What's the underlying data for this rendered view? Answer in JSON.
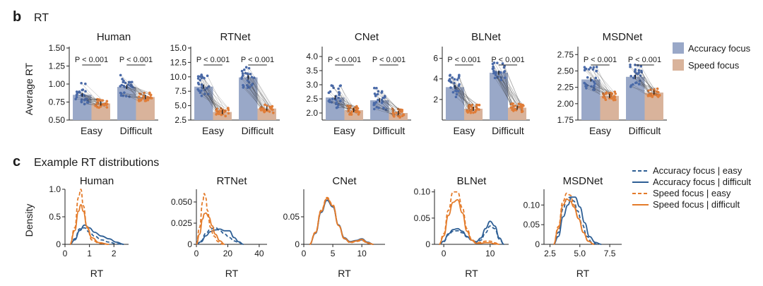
{
  "panel_b": {
    "letter": "b",
    "title": "RT",
    "ylabel": "Average RT"
  },
  "panel_c": {
    "letter": "c",
    "title": "Example RT distributions",
    "ylabel": "Density",
    "xlabel": "RT"
  },
  "colors": {
    "accuracy": "#99a8c8",
    "speed": "#d9b39b",
    "acc_line": "#2e5f95",
    "spd_line": "#e47b2a",
    "dot_acc": "#4a6aa8",
    "dot_spd": "#e07d38",
    "pair": "#3a3a3a"
  },
  "legend_b": [
    {
      "label": "Accuracy focus",
      "color": "#99a8c8"
    },
    {
      "label": "Speed focus",
      "color": "#d9b39b"
    }
  ],
  "legend_c": [
    {
      "label": "Accuracy focus | easy",
      "color": "#2e5f95",
      "dash": true
    },
    {
      "label": "Accuracy focus | difficult",
      "color": "#2e5f95",
      "dash": false
    },
    {
      "label": "Speed focus | easy",
      "color": "#e47b2a",
      "dash": true
    },
    {
      "label": "Speed focus | difficult",
      "color": "#e47b2a",
      "dash": false
    }
  ],
  "chart_data": [
    {
      "panel": "b",
      "title": "Human",
      "type": "bar",
      "categories": [
        "Easy",
        "Difficult"
      ],
      "series": [
        {
          "name": "Accuracy focus",
          "values": [
            0.85,
            0.96
          ]
        },
        {
          "name": "Speed focus",
          "values": [
            0.73,
            0.82
          ]
        }
      ],
      "ylim": [
        0.5,
        1.5
      ],
      "yticks": [
        "0.50",
        "0.75",
        "1.00",
        "1.25",
        "1.50"
      ],
      "ytick_values": [
        0.5,
        0.75,
        1.0,
        1.25,
        1.5
      ],
      "annotations": [
        "P < 0.001",
        "P < 0.001"
      ]
    },
    {
      "panel": "b",
      "title": "RTNet",
      "type": "bar",
      "categories": [
        "Easy",
        "Difficult"
      ],
      "series": [
        {
          "name": "Accuracy focus",
          "values": [
            8.3,
            9.9
          ]
        },
        {
          "name": "Speed focus",
          "values": [
            3.9,
            4.5
          ]
        }
      ],
      "ylim": [
        2.5,
        15.0
      ],
      "yticks": [
        "2.5",
        "5.0",
        "7.5",
        "10.0",
        "12.5",
        "15.0"
      ],
      "ytick_values": [
        2.5,
        5,
        7.5,
        10,
        12.5,
        15
      ],
      "annotations": [
        "P < 0.001",
        "P < 0.001"
      ]
    },
    {
      "panel": "b",
      "title": "CNet",
      "type": "bar",
      "categories": [
        "Easy",
        "Difficult"
      ],
      "series": [
        {
          "name": "Accuracy focus",
          "values": [
            2.55,
            2.45
          ]
        },
        {
          "name": "Speed focus",
          "values": [
            2.1,
            2.0
          ]
        }
      ],
      "ylim": [
        1.75,
        4.3
      ],
      "yticks": [
        "2.0",
        "2.5",
        "3.0",
        "3.5",
        "4.0"
      ],
      "ytick_values": [
        2,
        2.5,
        3,
        3.5,
        4
      ],
      "annotations": [
        "P < 0.001",
        "P < 0.001"
      ]
    },
    {
      "panel": "b",
      "title": "BLNet",
      "type": "bar",
      "categories": [
        "Easy",
        "Difficult"
      ],
      "series": [
        {
          "name": "Accuracy focus",
          "values": [
            3.2,
            4.6
          ]
        },
        {
          "name": "Speed focus",
          "values": [
            1.1,
            1.2
          ]
        }
      ],
      "ylim": [
        0,
        7
      ],
      "yticks": [
        "2",
        "4",
        "6"
      ],
      "ytick_values": [
        2,
        4,
        6
      ],
      "annotations": [
        "P < 0.001",
        "P < 0.001"
      ]
    },
    {
      "panel": "b",
      "title": "MSDNet",
      "type": "bar",
      "categories": [
        "Easy",
        "Difficult"
      ],
      "series": [
        {
          "name": "Accuracy focus",
          "values": [
            2.37,
            2.41
          ]
        },
        {
          "name": "Speed focus",
          "values": [
            2.12,
            2.17
          ]
        }
      ],
      "ylim": [
        1.75,
        2.85
      ],
      "yticks": [
        "1.75",
        "2.00",
        "2.25",
        "2.50",
        "2.75"
      ],
      "ytick_values": [
        1.75,
        2.0,
        2.25,
        2.5,
        2.75
      ],
      "annotations": [
        "P < 0.001",
        "P < 0.001"
      ]
    },
    {
      "panel": "c",
      "title": "Human",
      "type": "line",
      "xlim": [
        0,
        2.6
      ],
      "ylim": [
        0,
        1.0
      ],
      "xticks": [
        "0",
        "1",
        "2"
      ],
      "xtick_values": [
        0,
        1,
        2
      ],
      "yticks": [
        "0",
        "0.5",
        "1.0"
      ],
      "ytick_values": [
        0,
        0.5,
        1.0
      ],
      "series": [
        {
          "name": "Accuracy focus | easy",
          "x": [
            0.2,
            0.4,
            0.6,
            0.8,
            1.0,
            1.2,
            1.5,
            1.8,
            2.1,
            2.4
          ],
          "y": [
            0,
            0.1,
            0.28,
            0.3,
            0.22,
            0.15,
            0.08,
            0.04,
            0.01,
            0
          ]
        },
        {
          "name": "Accuracy focus | difficult",
          "x": [
            0.2,
            0.4,
            0.6,
            0.8,
            1.0,
            1.2,
            1.5,
            1.8,
            2.1,
            2.4
          ],
          "y": [
            0,
            0.08,
            0.25,
            0.35,
            0.3,
            0.22,
            0.15,
            0.1,
            0.04,
            0
          ]
        },
        {
          "name": "Speed focus | easy",
          "x": [
            0.2,
            0.4,
            0.55,
            0.65,
            0.75,
            0.9,
            1.1,
            1.4,
            1.8
          ],
          "y": [
            0,
            0.3,
            0.85,
            1.0,
            0.7,
            0.3,
            0.08,
            0.02,
            0
          ]
        },
        {
          "name": "Speed focus | difficult",
          "x": [
            0.2,
            0.4,
            0.55,
            0.65,
            0.75,
            0.9,
            1.1,
            1.4,
            1.8
          ],
          "y": [
            0,
            0.25,
            0.6,
            0.72,
            0.6,
            0.32,
            0.12,
            0.03,
            0
          ]
        }
      ]
    },
    {
      "panel": "c",
      "title": "RTNet",
      "type": "line",
      "xlim": [
        0,
        45
      ],
      "ylim": [
        0,
        0.065
      ],
      "xticks": [
        "0",
        "20",
        "40"
      ],
      "xtick_values": [
        0,
        20,
        40
      ],
      "yticks": [
        "0",
        "0.025",
        "0.050"
      ],
      "ytick_values": [
        0,
        0.025,
        0.05
      ],
      "series": [
        {
          "name": "Accuracy focus | easy",
          "x": [
            0,
            3,
            6,
            9,
            12,
            15,
            18,
            21,
            24,
            27,
            30
          ],
          "y": [
            0,
            0.004,
            0.013,
            0.018,
            0.02,
            0.016,
            0.012,
            0.008,
            0.004,
            0.002,
            0
          ]
        },
        {
          "name": "Accuracy focus | difficult",
          "x": [
            0,
            3,
            6,
            9,
            12,
            15,
            18,
            21,
            24,
            27,
            30
          ],
          "y": [
            0,
            0.003,
            0.01,
            0.015,
            0.017,
            0.018,
            0.016,
            0.016,
            0.008,
            0.003,
            0
          ]
        },
        {
          "name": "Speed focus | easy",
          "x": [
            0,
            2,
            4,
            5,
            6,
            7,
            9,
            11,
            14,
            17
          ],
          "y": [
            0,
            0.02,
            0.05,
            0.06,
            0.055,
            0.04,
            0.02,
            0.01,
            0.003,
            0
          ]
        },
        {
          "name": "Speed focus | difficult",
          "x": [
            0,
            2,
            4,
            5,
            6,
            8,
            10,
            12,
            15,
            18
          ],
          "y": [
            0,
            0.012,
            0.03,
            0.036,
            0.037,
            0.032,
            0.022,
            0.012,
            0.004,
            0
          ]
        }
      ]
    },
    {
      "panel": "c",
      "title": "CNet",
      "type": "line",
      "xlim": [
        0,
        14
      ],
      "ylim": [
        0,
        0.1
      ],
      "xticks": [
        "0",
        "5",
        "10"
      ],
      "xtick_values": [
        0,
        5,
        10
      ],
      "yticks": [
        "0",
        "0.05"
      ],
      "ytick_values": [
        0,
        0.05
      ],
      "series": [
        {
          "name": "Accuracy focus | easy",
          "x": [
            1,
            2,
            3,
            4,
            5,
            6,
            7,
            8,
            9,
            10,
            11,
            12
          ],
          "y": [
            0,
            0.02,
            0.06,
            0.082,
            0.07,
            0.035,
            0.01,
            0.004,
            0.006,
            0.008,
            0.003,
            0
          ]
        },
        {
          "name": "Accuracy focus | difficult",
          "x": [
            1,
            2,
            3,
            4,
            5,
            6,
            7,
            8,
            9,
            10,
            11,
            12
          ],
          "y": [
            0,
            0.02,
            0.058,
            0.08,
            0.068,
            0.035,
            0.012,
            0.005,
            0.007,
            0.01,
            0.004,
            0
          ]
        },
        {
          "name": "Speed focus | easy",
          "x": [
            1,
            2,
            3,
            4,
            5,
            6,
            7,
            8,
            9,
            10,
            11,
            12
          ],
          "y": [
            0,
            0.022,
            0.062,
            0.085,
            0.072,
            0.034,
            0.01,
            0.003,
            0.005,
            0.007,
            0.002,
            0
          ]
        },
        {
          "name": "Speed focus | difficult",
          "x": [
            1,
            2,
            3,
            4,
            5,
            6,
            7,
            8,
            9,
            10,
            11,
            12
          ],
          "y": [
            0,
            0.021,
            0.06,
            0.083,
            0.07,
            0.034,
            0.011,
            0.004,
            0.006,
            0.009,
            0.003,
            0
          ]
        }
      ]
    },
    {
      "panel": "c",
      "title": "BLNet",
      "type": "line",
      "xlim": [
        -2,
        14
      ],
      "ylim": [
        0,
        0.105
      ],
      "xticks": [
        "0",
        "10"
      ],
      "xtick_values": [
        0,
        10
      ],
      "yticks": [
        "0",
        "0.05",
        "0.10"
      ],
      "ytick_values": [
        0,
        0.05,
        0.1
      ],
      "series": [
        {
          "name": "Accuracy focus | easy",
          "x": [
            -1,
            0,
            1,
            2,
            3,
            4,
            5,
            6,
            7,
            8,
            9,
            10,
            11,
            12,
            13
          ],
          "y": [
            0,
            0.005,
            0.018,
            0.025,
            0.026,
            0.022,
            0.014,
            0.008,
            0.004,
            0.008,
            0.022,
            0.035,
            0.03,
            0.01,
            0
          ]
        },
        {
          "name": "Accuracy focus | difficult",
          "x": [
            -1,
            0,
            1,
            2,
            3,
            4,
            5,
            6,
            7,
            8,
            9,
            10,
            11,
            12,
            13
          ],
          "y": [
            0,
            0.006,
            0.02,
            0.028,
            0.03,
            0.025,
            0.015,
            0.008,
            0.005,
            0.012,
            0.03,
            0.044,
            0.035,
            0.012,
            0
          ]
        },
        {
          "name": "Speed focus | easy",
          "x": [
            -1,
            0,
            1,
            2,
            3,
            4,
            5,
            6,
            7,
            8,
            9,
            10,
            11,
            12
          ],
          "y": [
            0,
            0.02,
            0.065,
            0.1,
            0.1,
            0.07,
            0.03,
            0.01,
            0.003,
            0.004,
            0.006,
            0.006,
            0.003,
            0
          ]
        },
        {
          "name": "Speed focus | difficult",
          "x": [
            -1,
            0,
            1,
            2,
            3,
            4,
            5,
            6,
            7,
            8,
            9,
            10,
            11,
            12
          ],
          "y": [
            0,
            0.016,
            0.055,
            0.08,
            0.085,
            0.06,
            0.025,
            0.008,
            0.002,
            0.002,
            0.003,
            0.003,
            0.001,
            0
          ]
        }
      ]
    },
    {
      "panel": "c",
      "title": "MSDNet",
      "type": "line",
      "xlim": [
        2,
        8.5
      ],
      "ylim": [
        0,
        0.14
      ],
      "xticks": [
        "2.5",
        "5.0",
        "7.5"
      ],
      "xtick_values": [
        2.5,
        5.0,
        7.5
      ],
      "yticks": [
        "0",
        "0.05",
        "0.10"
      ],
      "ytick_values": [
        0,
        0.05,
        0.1
      ],
      "series": [
        {
          "name": "Accuracy focus | easy",
          "x": [
            2.8,
            3.2,
            3.6,
            3.9,
            4.2,
            4.5,
            4.8,
            5.2,
            5.6,
            6.0,
            6.5
          ],
          "y": [
            0,
            0.03,
            0.09,
            0.115,
            0.12,
            0.11,
            0.085,
            0.05,
            0.02,
            0.005,
            0
          ]
        },
        {
          "name": "Accuracy focus | difficult",
          "x": [
            2.8,
            3.2,
            3.6,
            4.0,
            4.3,
            4.6,
            5.0,
            5.4,
            5.8,
            6.3,
            6.8
          ],
          "y": [
            0,
            0.02,
            0.07,
            0.1,
            0.12,
            0.12,
            0.095,
            0.055,
            0.02,
            0.005,
            0
          ]
        },
        {
          "name": "Speed focus | easy",
          "x": [
            2.8,
            3.2,
            3.6,
            3.9,
            4.2,
            4.5,
            4.9,
            5.3,
            5.7,
            6.2
          ],
          "y": [
            0,
            0.045,
            0.11,
            0.13,
            0.125,
            0.1,
            0.065,
            0.03,
            0.008,
            0
          ]
        },
        {
          "name": "Speed focus | difficult",
          "x": [
            2.8,
            3.2,
            3.6,
            3.9,
            4.2,
            4.5,
            4.9,
            5.3,
            5.7,
            6.2
          ],
          "y": [
            0,
            0.04,
            0.1,
            0.115,
            0.11,
            0.095,
            0.065,
            0.03,
            0.008,
            0
          ]
        }
      ]
    }
  ]
}
